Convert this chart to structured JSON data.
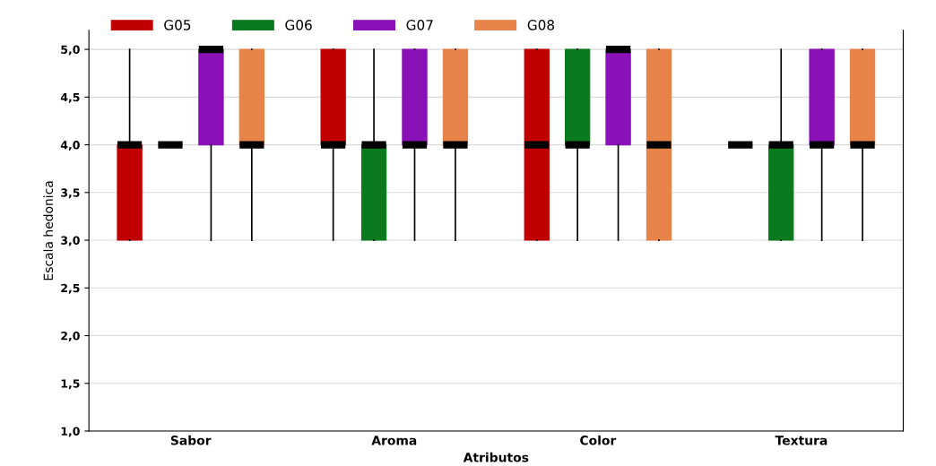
{
  "chart_data": {
    "type": "box",
    "xlabel": "Atributos",
    "ylabel": "Escala hedonica",
    "categories": [
      "Sabor",
      "Aroma",
      "Color",
      "Textura"
    ],
    "ylim": [
      1,
      5.2
    ],
    "yticks": [
      {
        "value": 1,
        "label": "1,0"
      },
      {
        "value": 1.5,
        "label": "1,5"
      },
      {
        "value": 2,
        "label": "2,0"
      },
      {
        "value": 2.5,
        "label": "2,5"
      },
      {
        "value": 3,
        "label": "3,0"
      },
      {
        "value": 3.5,
        "label": "3,5"
      },
      {
        "value": 4,
        "label": "4,0"
      },
      {
        "value": 4.5,
        "label": "4,5"
      },
      {
        "value": 5,
        "label": "5,0"
      }
    ],
    "grid": "y",
    "legend": "top",
    "series": [
      {
        "name": "G05",
        "color": "#c00000",
        "boxes": [
          {
            "low": 3,
            "q1": 3,
            "median": 4,
            "q3": 4,
            "high": 5
          },
          {
            "low": 3,
            "q1": 4,
            "median": 4,
            "q3": 5,
            "high": 5
          },
          {
            "low": 3,
            "q1": 3,
            "median": 4,
            "q3": 5,
            "high": 5
          },
          {
            "low": 4,
            "q1": 4,
            "median": 4,
            "q3": 4,
            "high": 4
          }
        ]
      },
      {
        "name": "G06",
        "color": "#0b7a1e",
        "boxes": [
          {
            "low": 4,
            "q1": 4,
            "median": 4,
            "q3": 4,
            "high": 4
          },
          {
            "low": 3,
            "q1": 3,
            "median": 4,
            "q3": 4,
            "high": 5
          },
          {
            "low": 3,
            "q1": 4,
            "median": 4,
            "q3": 5,
            "high": 5
          },
          {
            "low": 3,
            "q1": 3,
            "median": 4,
            "q3": 4,
            "high": 5
          }
        ]
      },
      {
        "name": "G07",
        "color": "#8a10b8",
        "boxes": [
          {
            "low": 3,
            "q1": 4,
            "median": 5,
            "q3": 5,
            "high": 5
          },
          {
            "low": 3,
            "q1": 4,
            "median": 4,
            "q3": 5,
            "high": 5
          },
          {
            "low": 3,
            "q1": 4,
            "median": 5,
            "q3": 5,
            "high": 5
          },
          {
            "low": 3,
            "q1": 4,
            "median": 4,
            "q3": 5,
            "high": 5
          }
        ]
      },
      {
        "name": "G08",
        "color": "#e8834a",
        "boxes": [
          {
            "low": 3,
            "q1": 4,
            "median": 4,
            "q3": 5,
            "high": 5
          },
          {
            "low": 3,
            "q1": 4,
            "median": 4,
            "q3": 5,
            "high": 5
          },
          {
            "low": 3,
            "q1": 3,
            "median": 4,
            "q3": 5,
            "high": 5
          },
          {
            "low": 3,
            "q1": 4,
            "median": 4,
            "q3": 5,
            "high": 5
          }
        ]
      }
    ]
  }
}
